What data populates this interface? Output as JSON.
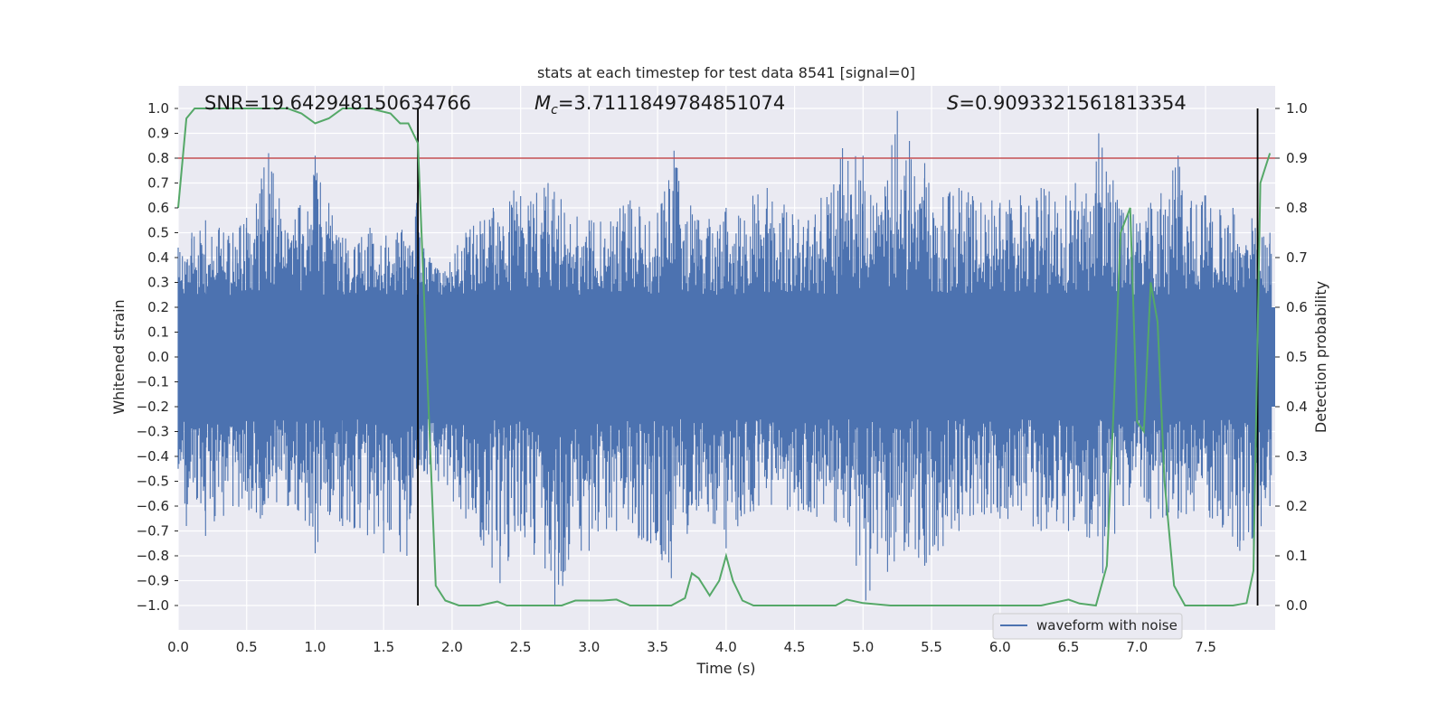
{
  "chart_data": {
    "type": "line",
    "title": "stats at each timestep for test data 8541 [signal=0]",
    "xlabel": "Time (s)",
    "ylabel": "Whitened strain",
    "y2label": "Detection probability",
    "xlim": [
      0.0,
      8.0
    ],
    "ylim": [
      -1.1,
      1.1
    ],
    "y2lim": [
      -0.05,
      1.05
    ],
    "x_ticks": [
      "0.0",
      "0.5",
      "1.0",
      "1.5",
      "2.0",
      "2.5",
      "3.0",
      "3.5",
      "4.0",
      "4.5",
      "5.0",
      "5.5",
      "6.0",
      "6.5",
      "7.0",
      "7.5"
    ],
    "y_ticks": [
      "1.0",
      "0.9",
      "0.8",
      "0.7",
      "0.6",
      "0.5",
      "0.4",
      "0.3",
      "0.2",
      "0.1",
      "0.0",
      "−0.1",
      "−0.2",
      "−0.3",
      "−0.4",
      "−0.5",
      "−0.6",
      "−0.7",
      "−0.8",
      "−0.9",
      "−1.0"
    ],
    "y2_ticks": [
      "1.0",
      "0.9",
      "0.8",
      "0.7",
      "0.6",
      "0.5",
      "0.4",
      "0.3",
      "0.2",
      "0.1",
      "0.0"
    ],
    "grid": true,
    "legend_position": "lower right",
    "annotations": {
      "snr": "SNR=19.642948150634766",
      "mc_symbol": "M",
      "mc_sub": "c",
      "mc_value": "=3.7111849784851074",
      "s_symbol": "S",
      "s_value": "=0.9093321561813354"
    },
    "threshold": 0.8,
    "vlines": [
      1.75,
      7.88
    ],
    "series": [
      {
        "name": "waveform with noise",
        "color": "#4c72b0",
        "description_values": "dense whitened strain trace; spikes as [time, value]",
        "upper_envelope": [
          [
            0.0,
            0.44
          ],
          [
            0.1,
            0.5
          ],
          [
            0.2,
            0.55
          ],
          [
            0.3,
            0.52
          ],
          [
            0.4,
            0.5
          ],
          [
            0.5,
            0.56
          ],
          [
            0.66,
            0.82
          ],
          [
            0.8,
            0.5
          ],
          [
            1.0,
            0.81
          ],
          [
            1.2,
            0.48
          ],
          [
            1.4,
            0.52
          ],
          [
            1.6,
            0.5
          ],
          [
            1.74,
            0.62
          ],
          [
            1.9,
            0.35
          ],
          [
            2.1,
            0.5
          ],
          [
            2.3,
            0.6
          ],
          [
            2.45,
            0.67
          ],
          [
            2.7,
            0.7
          ],
          [
            3.0,
            0.55
          ],
          [
            3.3,
            0.63
          ],
          [
            3.5,
            0.58
          ],
          [
            3.62,
            0.83
          ],
          [
            3.8,
            0.55
          ],
          [
            4.0,
            0.6
          ],
          [
            4.3,
            0.68
          ],
          [
            4.6,
            0.55
          ],
          [
            4.85,
            0.84
          ],
          [
            5.0,
            0.81
          ],
          [
            5.1,
            0.62
          ],
          [
            5.25,
            0.99
          ],
          [
            5.45,
            0.78
          ],
          [
            5.7,
            0.68
          ],
          [
            6.0,
            0.62
          ],
          [
            6.3,
            0.68
          ],
          [
            6.55,
            0.7
          ],
          [
            6.72,
            0.9
          ],
          [
            6.9,
            0.58
          ],
          [
            7.1,
            0.62
          ],
          [
            7.3,
            0.81
          ],
          [
            7.5,
            0.65
          ],
          [
            7.7,
            0.6
          ],
          [
            7.88,
            0.55
          ],
          [
            7.97,
            0.5
          ]
        ],
        "lower_envelope": [
          [
            0.0,
            -0.45
          ],
          [
            0.06,
            -0.68
          ],
          [
            0.2,
            -0.72
          ],
          [
            0.4,
            -0.6
          ],
          [
            0.6,
            -0.65
          ],
          [
            0.8,
            -0.6
          ],
          [
            1.0,
            -0.79
          ],
          [
            1.2,
            -0.68
          ],
          [
            1.5,
            -0.79
          ],
          [
            1.67,
            -0.8
          ],
          [
            1.74,
            -0.45
          ],
          [
            1.9,
            -0.5
          ],
          [
            2.1,
            -0.65
          ],
          [
            2.35,
            -0.91
          ],
          [
            2.5,
            -0.7
          ],
          [
            2.75,
            -1.0
          ],
          [
            3.0,
            -0.78
          ],
          [
            3.2,
            -0.7
          ],
          [
            3.45,
            -0.75
          ],
          [
            3.6,
            -0.89
          ],
          [
            3.8,
            -0.6
          ],
          [
            4.0,
            -0.77
          ],
          [
            4.2,
            -0.62
          ],
          [
            4.6,
            -0.62
          ],
          [
            4.95,
            -0.84
          ],
          [
            5.02,
            -0.98
          ],
          [
            5.3,
            -0.78
          ],
          [
            5.45,
            -0.84
          ],
          [
            5.7,
            -0.7
          ],
          [
            6.0,
            -0.65
          ],
          [
            6.3,
            -0.7
          ],
          [
            6.5,
            -0.7
          ],
          [
            6.75,
            -0.87
          ],
          [
            6.9,
            -0.6
          ],
          [
            7.1,
            -0.65
          ],
          [
            7.3,
            -0.65
          ],
          [
            7.55,
            -0.65
          ],
          [
            7.75,
            -0.78
          ],
          [
            7.85,
            -0.78
          ],
          [
            7.97,
            -0.6
          ]
        ],
        "dense_band": [
          -0.2,
          0.2
        ]
      },
      {
        "name": "detection probability",
        "color": "#55a868",
        "axis": "right",
        "x": [
          0.0,
          0.06,
          0.12,
          0.2,
          0.3,
          0.5,
          0.7,
          0.8,
          0.9,
          1.0,
          1.1,
          1.2,
          1.4,
          1.55,
          1.62,
          1.68,
          1.75,
          1.88,
          1.95,
          2.05,
          2.2,
          2.33,
          2.4,
          2.6,
          2.8,
          2.9,
          3.0,
          3.1,
          3.2,
          3.3,
          3.4,
          3.6,
          3.7,
          3.75,
          3.8,
          3.88,
          3.95,
          4.0,
          4.05,
          4.12,
          4.2,
          4.4,
          4.6,
          4.8,
          4.88,
          5.0,
          5.2,
          5.5,
          5.8,
          6.0,
          6.3,
          6.5,
          6.58,
          6.7,
          6.78,
          6.83,
          6.88,
          6.95,
          7.0,
          7.05,
          7.1,
          7.15,
          7.2,
          7.27,
          7.35,
          7.5,
          7.6,
          7.7,
          7.8,
          7.85,
          7.9,
          7.97
        ],
        "values": [
          0.8,
          0.98,
          1.0,
          1.0,
          1.0,
          1.0,
          1.0,
          1.0,
          0.99,
          0.97,
          0.98,
          1.0,
          1.0,
          0.99,
          0.97,
          0.97,
          0.93,
          0.04,
          0.01,
          0.0,
          0.0,
          0.008,
          0.0,
          0.0,
          0.0,
          0.01,
          0.01,
          0.01,
          0.012,
          0.0,
          0.0,
          0.0,
          0.015,
          0.065,
          0.055,
          0.02,
          0.05,
          0.1,
          0.05,
          0.01,
          0.0,
          0.0,
          0.0,
          0.0,
          0.012,
          0.005,
          0.0,
          0.0,
          0.0,
          0.0,
          0.0,
          0.012,
          0.004,
          0.0,
          0.08,
          0.4,
          0.75,
          0.8,
          0.37,
          0.35,
          0.65,
          0.57,
          0.25,
          0.04,
          0.0,
          0.0,
          0.0,
          0.0,
          0.005,
          0.07,
          0.85,
          0.91
        ]
      }
    ],
    "threshold_line": {
      "name": "threshold",
      "color": "#c44e52",
      "value": 0.8
    }
  }
}
